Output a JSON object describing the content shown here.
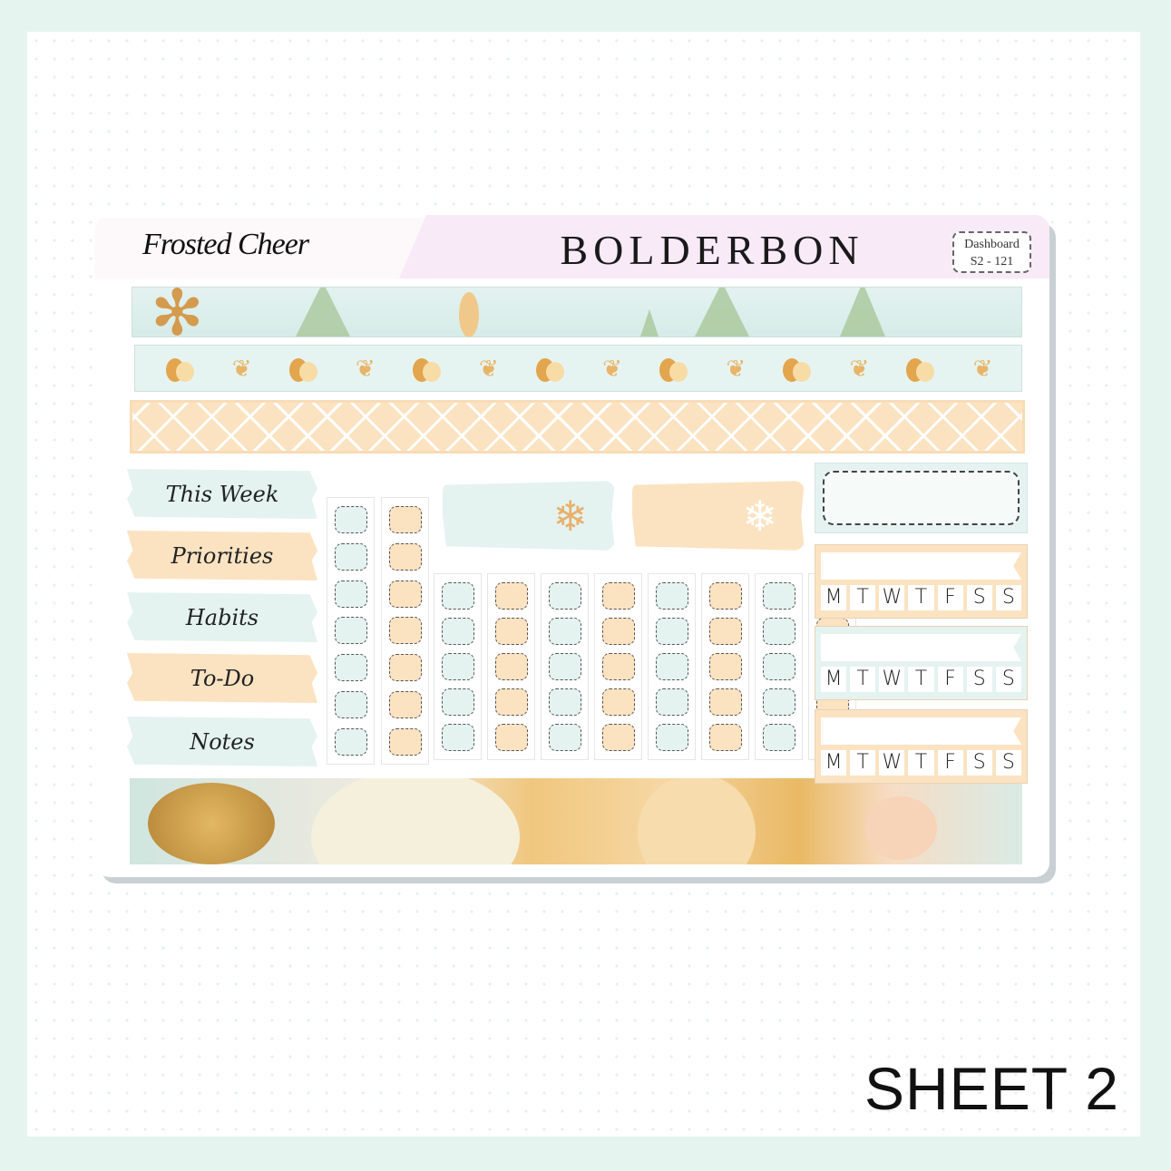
{
  "header": {
    "title": "Frosted Cheer",
    "brand": "BOLDERBON",
    "code_line1": "Dashboard",
    "code_line2": "S2 - 121"
  },
  "labels": [
    {
      "text": "This Week",
      "color": "blue"
    },
    {
      "text": "Priorities",
      "color": "peach"
    },
    {
      "text": "Habits",
      "color": "blue"
    },
    {
      "text": "To-Do",
      "color": "peach"
    },
    {
      "text": "Notes",
      "color": "blue"
    }
  ],
  "trackers": [
    {
      "color": "peach",
      "days": [
        "M",
        "T",
        "W",
        "T",
        "F",
        "S",
        "S"
      ]
    },
    {
      "color": "blue",
      "days": [
        "M",
        "T",
        "W",
        "T",
        "F",
        "S",
        "S"
      ]
    },
    {
      "color": "peach",
      "days": [
        "M",
        "T",
        "W",
        "T",
        "F",
        "S",
        "S"
      ]
    }
  ],
  "icons": {
    "banner": "snowflake-icon",
    "strip": "pumpkin-icon",
    "leaf": "leaf-icon"
  },
  "colors": {
    "mint": "#e4f3f0",
    "peach": "#fbe3c2",
    "pink": "#f9eaf8"
  },
  "footer": {
    "sheet_label": "SHEET 2"
  }
}
